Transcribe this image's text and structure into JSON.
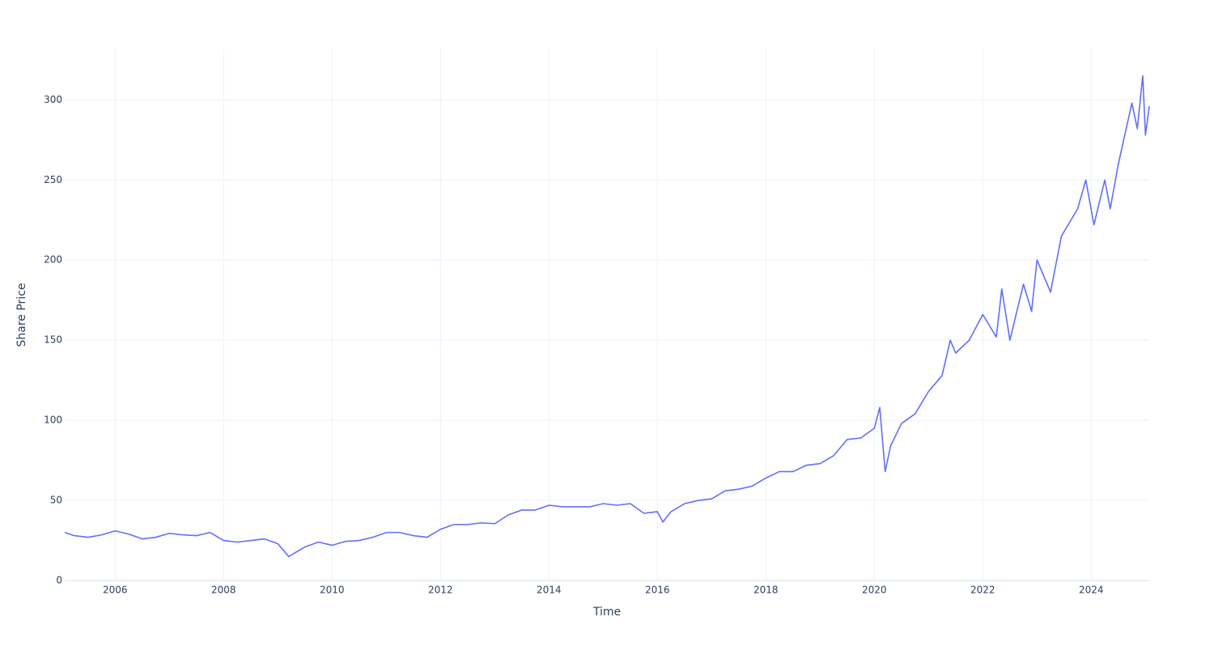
{
  "chart_data": {
    "type": "line",
    "x_label": "Time",
    "y_label": "Share Price",
    "x": [
      2005.07,
      2005.25,
      2005.5,
      2005.75,
      2006.0,
      2006.25,
      2006.5,
      2006.75,
      2007.0,
      2007.25,
      2007.5,
      2007.75,
      2008.0,
      2008.25,
      2008.5,
      2008.75,
      2009.0,
      2009.2,
      2009.5,
      2009.75,
      2010.0,
      2010.25,
      2010.5,
      2010.75,
      2011.0,
      2011.25,
      2011.5,
      2011.75,
      2012.0,
      2012.25,
      2012.5,
      2012.75,
      2013.0,
      2013.25,
      2013.5,
      2013.75,
      2014.0,
      2014.25,
      2014.5,
      2014.75,
      2015.0,
      2015.25,
      2015.5,
      2015.75,
      2016.0,
      2016.1,
      2016.25,
      2016.5,
      2016.75,
      2017.0,
      2017.25,
      2017.5,
      2017.75,
      2018.0,
      2018.25,
      2018.5,
      2018.75,
      2019.0,
      2019.25,
      2019.5,
      2019.75,
      2020.0,
      2020.1,
      2020.2,
      2020.3,
      2020.5,
      2020.75,
      2021.0,
      2021.25,
      2021.4,
      2021.5,
      2021.75,
      2022.0,
      2022.25,
      2022.35,
      2022.5,
      2022.75,
      2022.9,
      2023.0,
      2023.25,
      2023.45,
      2023.75,
      2023.9,
      2024.05,
      2024.25,
      2024.35,
      2024.5,
      2024.75,
      2024.85,
      2024.95,
      2025.0,
      2025.07
    ],
    "series": [
      {
        "name": "Share Price",
        "color": "#636efa",
        "values": [
          30,
          28,
          27,
          28.5,
          31,
          29,
          26,
          27,
          29.5,
          28.5,
          28,
          30,
          25,
          24,
          25,
          26,
          23,
          15,
          21,
          24,
          22,
          24.5,
          25,
          27,
          30,
          30,
          28,
          27,
          32,
          35,
          35,
          36,
          35.5,
          41,
          44,
          44,
          47,
          46,
          46,
          46,
          48,
          47,
          48,
          42,
          43,
          36.5,
          43,
          48,
          50,
          51,
          56,
          57,
          59,
          64,
          68,
          68,
          72,
          73,
          78,
          88,
          89,
          95,
          108,
          68,
          84,
          98,
          104,
          118,
          128,
          150,
          142,
          150,
          166,
          152,
          182,
          150,
          185,
          168,
          200,
          180,
          215,
          232,
          250,
          222,
          250,
          232,
          260,
          298,
          282,
          315,
          278,
          296
        ]
      }
    ],
    "xlim": [
      2005.07,
      2025.07
    ],
    "xticks": [
      2006,
      2008,
      2010,
      2012,
      2014,
      2016,
      2018,
      2020,
      2022,
      2024
    ],
    "ylim": [
      0,
      332
    ],
    "yticks": [
      0,
      50,
      100,
      150,
      200,
      250,
      300
    ],
    "grid": true
  }
}
